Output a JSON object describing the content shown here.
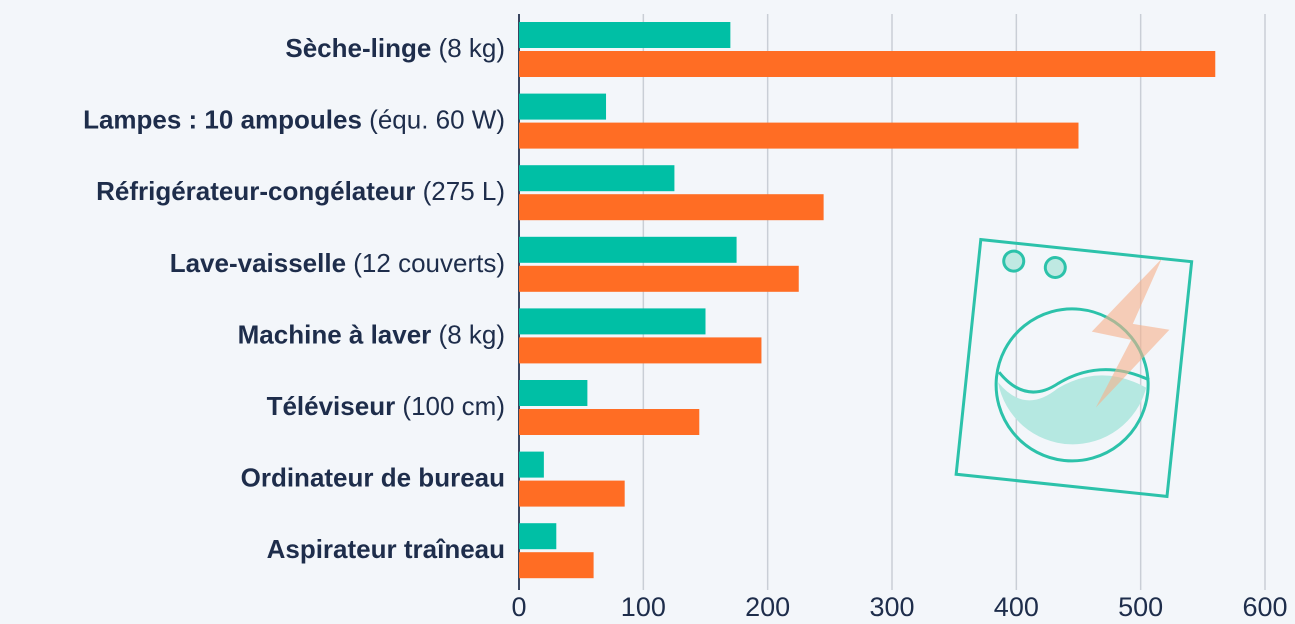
{
  "chart_data": {
    "type": "hbar",
    "categories": [
      "Sèche-linge (8 kg)",
      "Lampes : 10 ampoules (équ. 60 W)",
      "Réfrigérateur-congélateur (275 L)",
      "Lave-vaisselle (12 couverts)",
      "Machine à laver (8 kg)",
      "Téléviseur (100 cm)",
      "Ordinateur de bureau",
      "Aspirateur traîneau"
    ],
    "series": [
      {
        "color": "#00bfa5",
        "values": [
          170,
          70,
          125,
          175,
          150,
          55,
          20,
          30
        ]
      },
      {
        "color": "#ff6d24",
        "values": [
          560,
          450,
          245,
          225,
          195,
          145,
          85,
          60
        ]
      }
    ],
    "xlim": [
      0,
      600
    ],
    "xticks": [
      0,
      100,
      200,
      300,
      400,
      500,
      600
    ],
    "grid": true
  }
}
